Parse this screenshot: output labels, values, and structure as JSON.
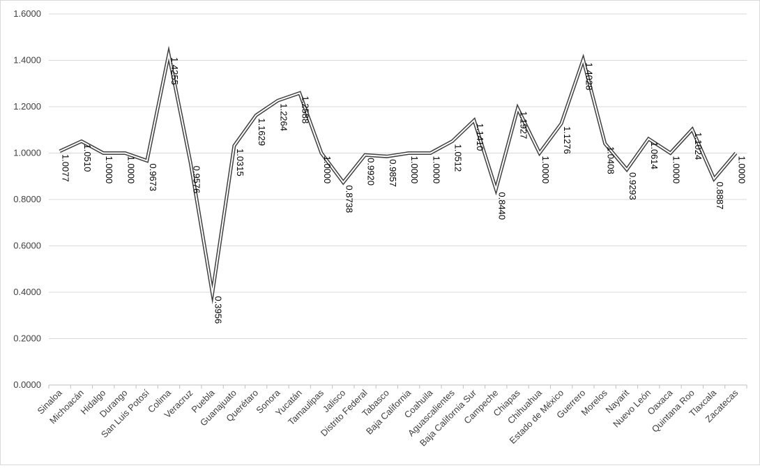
{
  "chart_data": {
    "type": "line",
    "title": "",
    "xlabel": "",
    "ylabel": "",
    "ylim": [
      0,
      1.6
    ],
    "yticks": [
      "0.0000",
      "0.2000",
      "0.4000",
      "0.6000",
      "0.8000",
      "1.0000",
      "1.2000",
      "1.4000",
      "1.6000"
    ],
    "grid": true,
    "legend": "none",
    "colors": {
      "line_outer": "#404040",
      "line_inner": "#ffffff",
      "grid": "#d9d9d9",
      "axis": "#bfbfbf"
    },
    "categories": [
      "Sinaloa",
      "Michoacán",
      "Hidalgo",
      "Durango",
      "San Luis Potosí",
      "Colima",
      "Veracruz",
      "Puebla",
      "Guanajuato",
      "Querétaro",
      "Sonora",
      "Yucatán",
      "Tamaulipas",
      "Jalisco",
      "Distrito Federal",
      "Tabasco",
      "Baja California",
      "Coahuila",
      "Aguascalientes",
      "Baja California Sur",
      "Campeche",
      "Chiapas",
      "Chihuahua",
      "Estado de México",
      "Guerrero",
      "Morelos",
      "Nayarit",
      "Nuevo León",
      "Oaxaca",
      "Quintana Roo",
      "Tlaxcala",
      "Zacatecas"
    ],
    "values": [
      1.0077,
      1.051,
      1.0,
      1.0,
      0.9673,
      1.4255,
      0.9576,
      0.3956,
      1.0315,
      1.1629,
      1.2264,
      1.2588,
      1.0,
      0.8738,
      0.992,
      0.9857,
      1.0,
      1.0,
      1.0512,
      1.141,
      0.844,
      1.1927,
      1.0,
      1.1276,
      1.4028,
      1.0408,
      0.9293,
      1.0614,
      1.0,
      1.1024,
      0.8887,
      1.0
    ],
    "data_labels": [
      "1.0077",
      "1.0510",
      "1.0000",
      "1.0000",
      "0.9673",
      "1.4255",
      "0.9576",
      "0.3956",
      "1.0315",
      "1.1629",
      "1.2264",
      "1.2588",
      "1.0000",
      "0.8738",
      "0.9920",
      "0.9857",
      "1.0000",
      "1.0000",
      "1.0512",
      "1.1410",
      "0.8440",
      "1.1927",
      "1.0000",
      "1.1276",
      "1.4028",
      "1.0408",
      "0.9293",
      "1.0614",
      "1.0000",
      "1.1024",
      "0.8887",
      "1.0000"
    ]
  }
}
